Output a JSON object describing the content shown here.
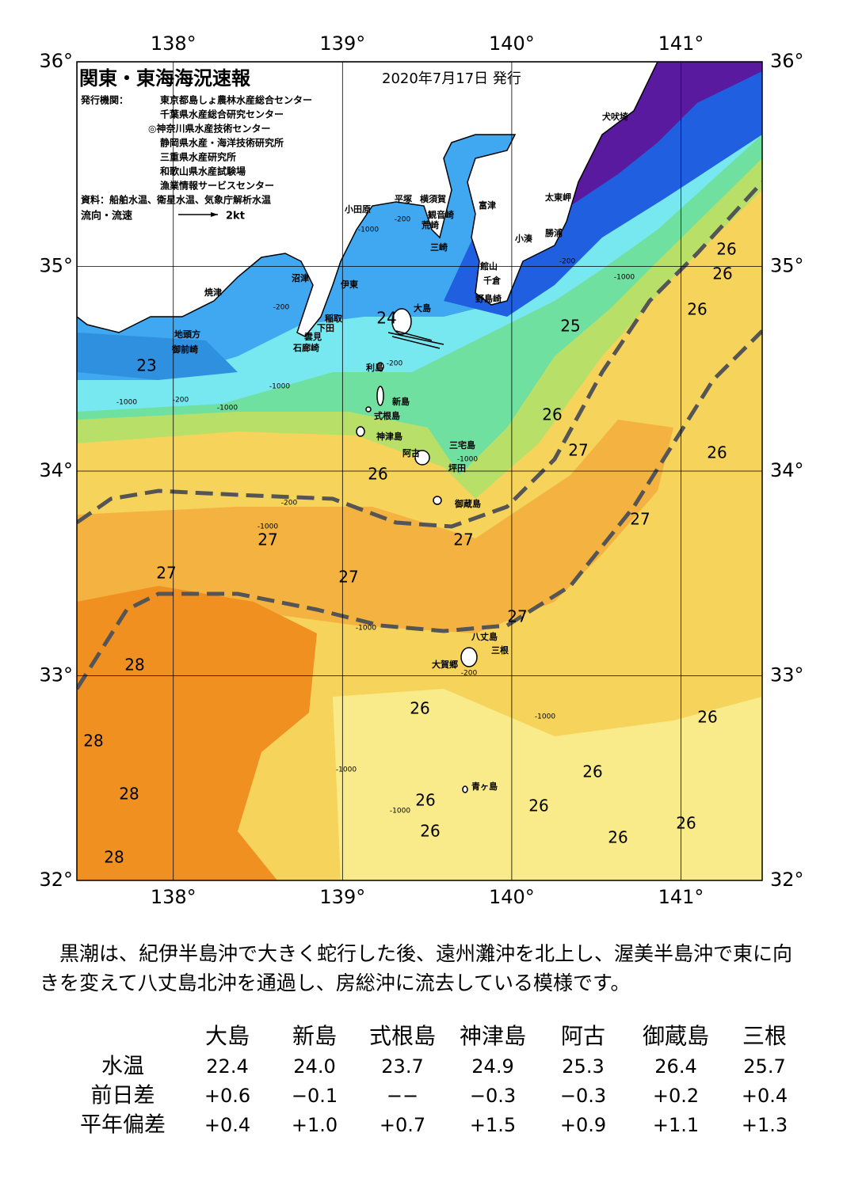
{
  "map": {
    "title": "関東・東海海況速報",
    "date": "2020年7月17日 発行",
    "issuer_label": "発行機関：",
    "issuers": [
      "東京都島しょ農林水産総合センター",
      "千葉県水産総合研究センター",
      "◎神奈川県水産技術センター",
      "静岡県水産・海洋技術研究所",
      "三重県水産研究所",
      "和歌山県水産試験場",
      "漁業情報サービスセンター"
    ],
    "source": "資料：船舶水温、衛星水温、気象庁解析水温",
    "flow_label": "流向・流速",
    "scale_label": "2kt",
    "xlim": [
      137.43,
      141.48
    ],
    "ylim": [
      32,
      36
    ],
    "xticks": [
      {
        "value": 138,
        "label": "138°"
      },
      {
        "value": 139,
        "label": "139°"
      },
      {
        "value": 140,
        "label": "140°"
      },
      {
        "value": 141,
        "label": "141°"
      }
    ],
    "yticks": [
      {
        "value": 36,
        "label": "36°"
      },
      {
        "value": 35,
        "label": "35°"
      },
      {
        "value": 34,
        "label": "34°"
      },
      {
        "value": 33,
        "label": "33°"
      },
      {
        "value": 32,
        "label": "32°"
      }
    ],
    "places": [
      "犬吠埼",
      "太東岬",
      "勝浦",
      "小湊",
      "富津",
      "館山",
      "千倉",
      "野島崎",
      "横須賀",
      "観音崎",
      "荒崎",
      "三崎",
      "平塚",
      "小田原",
      "沼津",
      "伊東",
      "焼津",
      "稲取",
      "下田",
      "雲見",
      "石廊崎",
      "地頭方",
      "御前崎",
      "大島",
      "利島",
      "新島",
      "式根島",
      "神津島",
      "阿古",
      "三宅島",
      "坪田",
      "御蔵島",
      "八丈島",
      "三根",
      "大賀郷",
      "青ヶ島"
    ],
    "isotherm_labels": [
      24,
      25,
      26,
      26,
      26,
      26,
      26,
      26,
      26,
      26,
      26,
      26,
      26,
      26,
      26,
      26,
      23,
      27,
      27,
      27,
      27,
      27,
      27,
      27,
      28,
      28,
      28,
      28
    ],
    "depth_labels": [
      -200,
      -1000,
      -200,
      -1000,
      -200,
      -1000,
      -200,
      -1000,
      -200,
      -1000,
      -1000,
      -1000,
      -200,
      -1000,
      -1000,
      -1000,
      -1000,
      -200
    ]
  },
  "text": "黒潮は、紀伊半島沖で大きく蛇行した後、遠州灘沖を北上し、渥美半島沖で東に向きを変えて八丈島北沖を通過し、房総沖に流去している模様です。",
  "table": {
    "columns": [
      "大島",
      "新島",
      "式根島",
      "神津島",
      "阿古",
      "御蔵島",
      "三根"
    ],
    "rows": [
      [
        "水温",
        "22.4",
        "24.0",
        "23.7",
        "24.9",
        "25.3",
        "26.4",
        "25.7"
      ],
      [
        "前日差",
        "+0.6",
        "−0.1",
        "−−",
        "−0.3",
        "−0.3",
        "+0.2",
        "+0.4"
      ],
      [
        "平年偏差",
        "+0.4",
        "+1.0",
        "+0.7",
        "+1.5",
        "+0.9",
        "+1.1",
        "+1.3"
      ]
    ]
  }
}
